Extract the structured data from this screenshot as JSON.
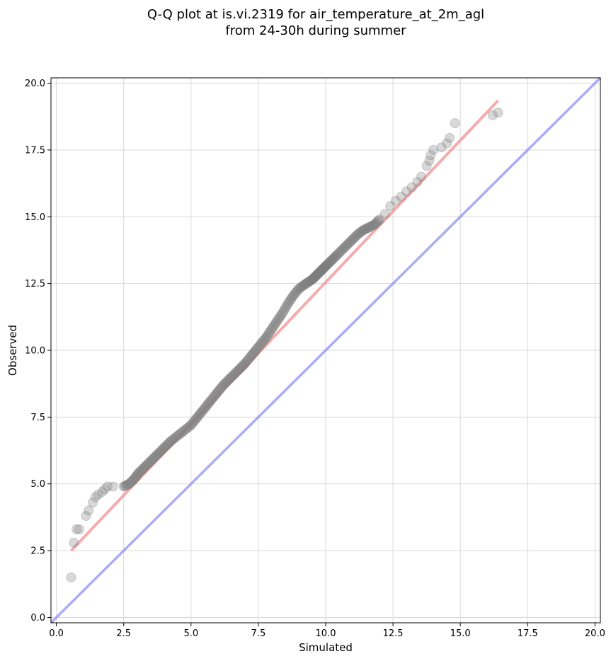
{
  "chart_data": {
    "type": "scatter",
    "title": "Q-Q plot at is.vi.2319 for air_temperature_at_2m_agl",
    "subtitle": "from 24-30h during summer",
    "xlabel": "Simulated",
    "ylabel": "Observed",
    "xlim": [
      -0.2,
      20.2
    ],
    "ylim": [
      -0.2,
      20.2
    ],
    "xticks": [
      "0.0",
      "2.5",
      "5.0",
      "7.5",
      "10.0",
      "12.5",
      "15.0",
      "17.5",
      "20.0"
    ],
    "yticks": [
      "0.0",
      "2.5",
      "5.0",
      "7.5",
      "10.0",
      "12.5",
      "15.0",
      "17.5",
      "20.0"
    ],
    "grid": true,
    "colors": {
      "points": "#7f7f7f",
      "fit_line": "#f08080",
      "identity_line": "#8080f0"
    },
    "series": [
      {
        "type": "scatter",
        "x": [
          0.55,
          0.65,
          0.75,
          0.85,
          1.1,
          1.2,
          1.35,
          1.45,
          1.55,
          1.7,
          1.8,
          1.9,
          2.1,
          2.5,
          2.7,
          2.9,
          3.05,
          3.25,
          3.45,
          3.65,
          3.85,
          4.05,
          4.25,
          4.5,
          4.75,
          5.0,
          5.2,
          5.4,
          5.6,
          5.8,
          6.0,
          6.2,
          6.4,
          6.6,
          6.8,
          7.0,
          7.2,
          7.4,
          7.6,
          7.8,
          8.0,
          8.2,
          8.4,
          8.6,
          8.8,
          9.0,
          9.2,
          9.35,
          9.5,
          9.6,
          9.7,
          9.8,
          9.9,
          10.0,
          10.1,
          10.25,
          10.4,
          10.6,
          10.8,
          11.0,
          11.2,
          11.4,
          11.6,
          11.8,
          12.0,
          12.2,
          12.4,
          12.6,
          12.8,
          13.0,
          13.2,
          13.4,
          13.55,
          13.75,
          13.85,
          13.9,
          14.0,
          14.3,
          14.5,
          14.6,
          14.8,
          16.2,
          16.4
        ],
        "y": [
          1.5,
          2.8,
          3.3,
          3.3,
          3.8,
          4.0,
          4.3,
          4.5,
          4.6,
          4.7,
          4.8,
          4.9,
          4.9,
          4.9,
          5.0,
          5.2,
          5.4,
          5.6,
          5.8,
          6.0,
          6.2,
          6.4,
          6.6,
          6.8,
          7.0,
          7.2,
          7.45,
          7.7,
          7.95,
          8.2,
          8.45,
          8.7,
          8.9,
          9.1,
          9.3,
          9.5,
          9.75,
          10.0,
          10.25,
          10.5,
          10.8,
          11.1,
          11.4,
          11.75,
          12.05,
          12.3,
          12.45,
          12.55,
          12.65,
          12.75,
          12.85,
          12.95,
          13.05,
          13.15,
          13.25,
          13.4,
          13.55,
          13.75,
          13.95,
          14.15,
          14.35,
          14.5,
          14.6,
          14.7,
          14.9,
          15.1,
          15.4,
          15.6,
          15.75,
          15.95,
          16.1,
          16.3,
          16.5,
          16.9,
          17.1,
          17.3,
          17.5,
          17.6,
          17.75,
          17.95,
          18.5,
          18.8,
          18.9
        ]
      },
      {
        "type": "line",
        "x": [
          0.55,
          16.4
        ],
        "y": [
          2.5,
          19.35
        ]
      },
      {
        "type": "line",
        "x": [
          -0.2,
          20.2
        ],
        "y": [
          -0.2,
          20.2
        ]
      }
    ]
  }
}
